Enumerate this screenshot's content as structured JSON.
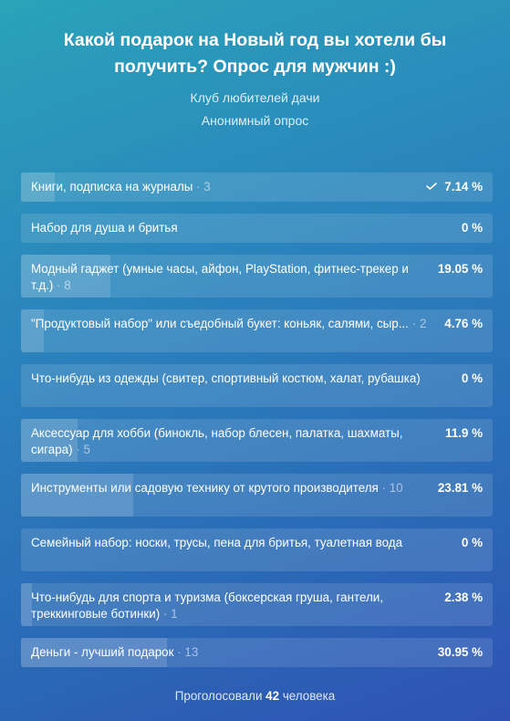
{
  "poll": {
    "title": "Какой подарок на Новый год вы хотели бы получить? Опрос для мужчин :)",
    "community": "Клуб любителей дачи",
    "type": "Анонимный опрос",
    "options": [
      {
        "text": "Книги, подписка на журналы",
        "count": "· 3",
        "percent": "7.14 %",
        "fraction": 0.0714,
        "voted": true
      },
      {
        "text": "Набор для душа и бритья",
        "count": "",
        "percent": "0 %",
        "fraction": 0,
        "voted": false
      },
      {
        "text": "Модный гаджет (умные часы, айфон, PlayStation, фитнес-трекер и т.д.)",
        "count": "· 8",
        "percent": "19.05 %",
        "fraction": 0.1905,
        "voted": false
      },
      {
        "text": "\"Продуктовый набор\" или съедобный букет: коньяк, салями, сыр...",
        "count": "· 2",
        "percent": "4.76 %",
        "fraction": 0.0476,
        "voted": false
      },
      {
        "text": "Что-нибудь из одежды (свитер, спортивный костюм, халат, рубашка)",
        "count": "",
        "percent": "0 %",
        "fraction": 0,
        "voted": false
      },
      {
        "text": "Аксессуар для хобби (бинокль, набор блесен, палатка, шахматы, сигара)",
        "count": "· 5",
        "percent": "11.9 %",
        "fraction": 0.119,
        "voted": false
      },
      {
        "text": "Инструменты или садовую технику от крутого производителя",
        "count": "· 10",
        "percent": "23.81 %",
        "fraction": 0.2381,
        "voted": false
      },
      {
        "text": "Семейный набор: носки, трусы, пена для бритья, туалетная вода",
        "count": "",
        "percent": "0 %",
        "fraction": 0,
        "voted": false
      },
      {
        "text": "Что-нибудь для спорта и туризма (боксерская груша, гантели, треккинговые ботинки)",
        "count": "· 1",
        "percent": "2.38 %",
        "fraction": 0.0238,
        "voted": false
      },
      {
        "text": "Деньги - лучший подарок",
        "count": "· 13",
        "percent": "30.95 %",
        "fraction": 0.3095,
        "voted": false
      }
    ],
    "footer": {
      "prefix": "Проголосовали",
      "total": "42",
      "suffix": "человека"
    }
  }
}
